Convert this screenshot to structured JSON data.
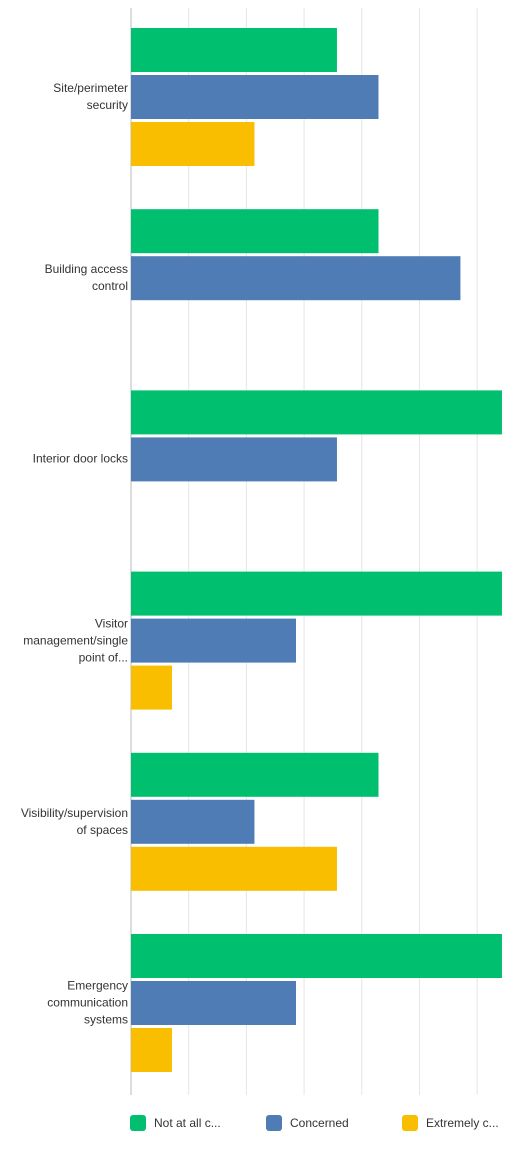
{
  "chart_data": {
    "type": "bar",
    "orientation": "horizontal",
    "categories": [
      "Site/perimeter security",
      "Building access control",
      "Interior door locks",
      "Visitor management/single point of...",
      "Visibility/supervision of spaces",
      "Emergency communication systems"
    ],
    "series": [
      {
        "name": "Not at all c...",
        "color": "#00bf6f",
        "values": [
          35.7,
          42.9,
          64.3,
          64.3,
          42.9,
          64.3
        ]
      },
      {
        "name": "Concerned",
        "color": "#507cb6",
        "values": [
          42.9,
          57.1,
          35.7,
          28.6,
          21.4,
          28.6
        ]
      },
      {
        "name": "Extremely c...",
        "color": "#f9be00",
        "values": [
          21.4,
          0,
          0,
          7.1,
          35.7,
          7.1
        ]
      }
    ],
    "xlim": [
      0,
      65
    ],
    "xticks": [
      0,
      10,
      20,
      30,
      40,
      50,
      60
    ],
    "grid": true,
    "legend": "bottom"
  }
}
